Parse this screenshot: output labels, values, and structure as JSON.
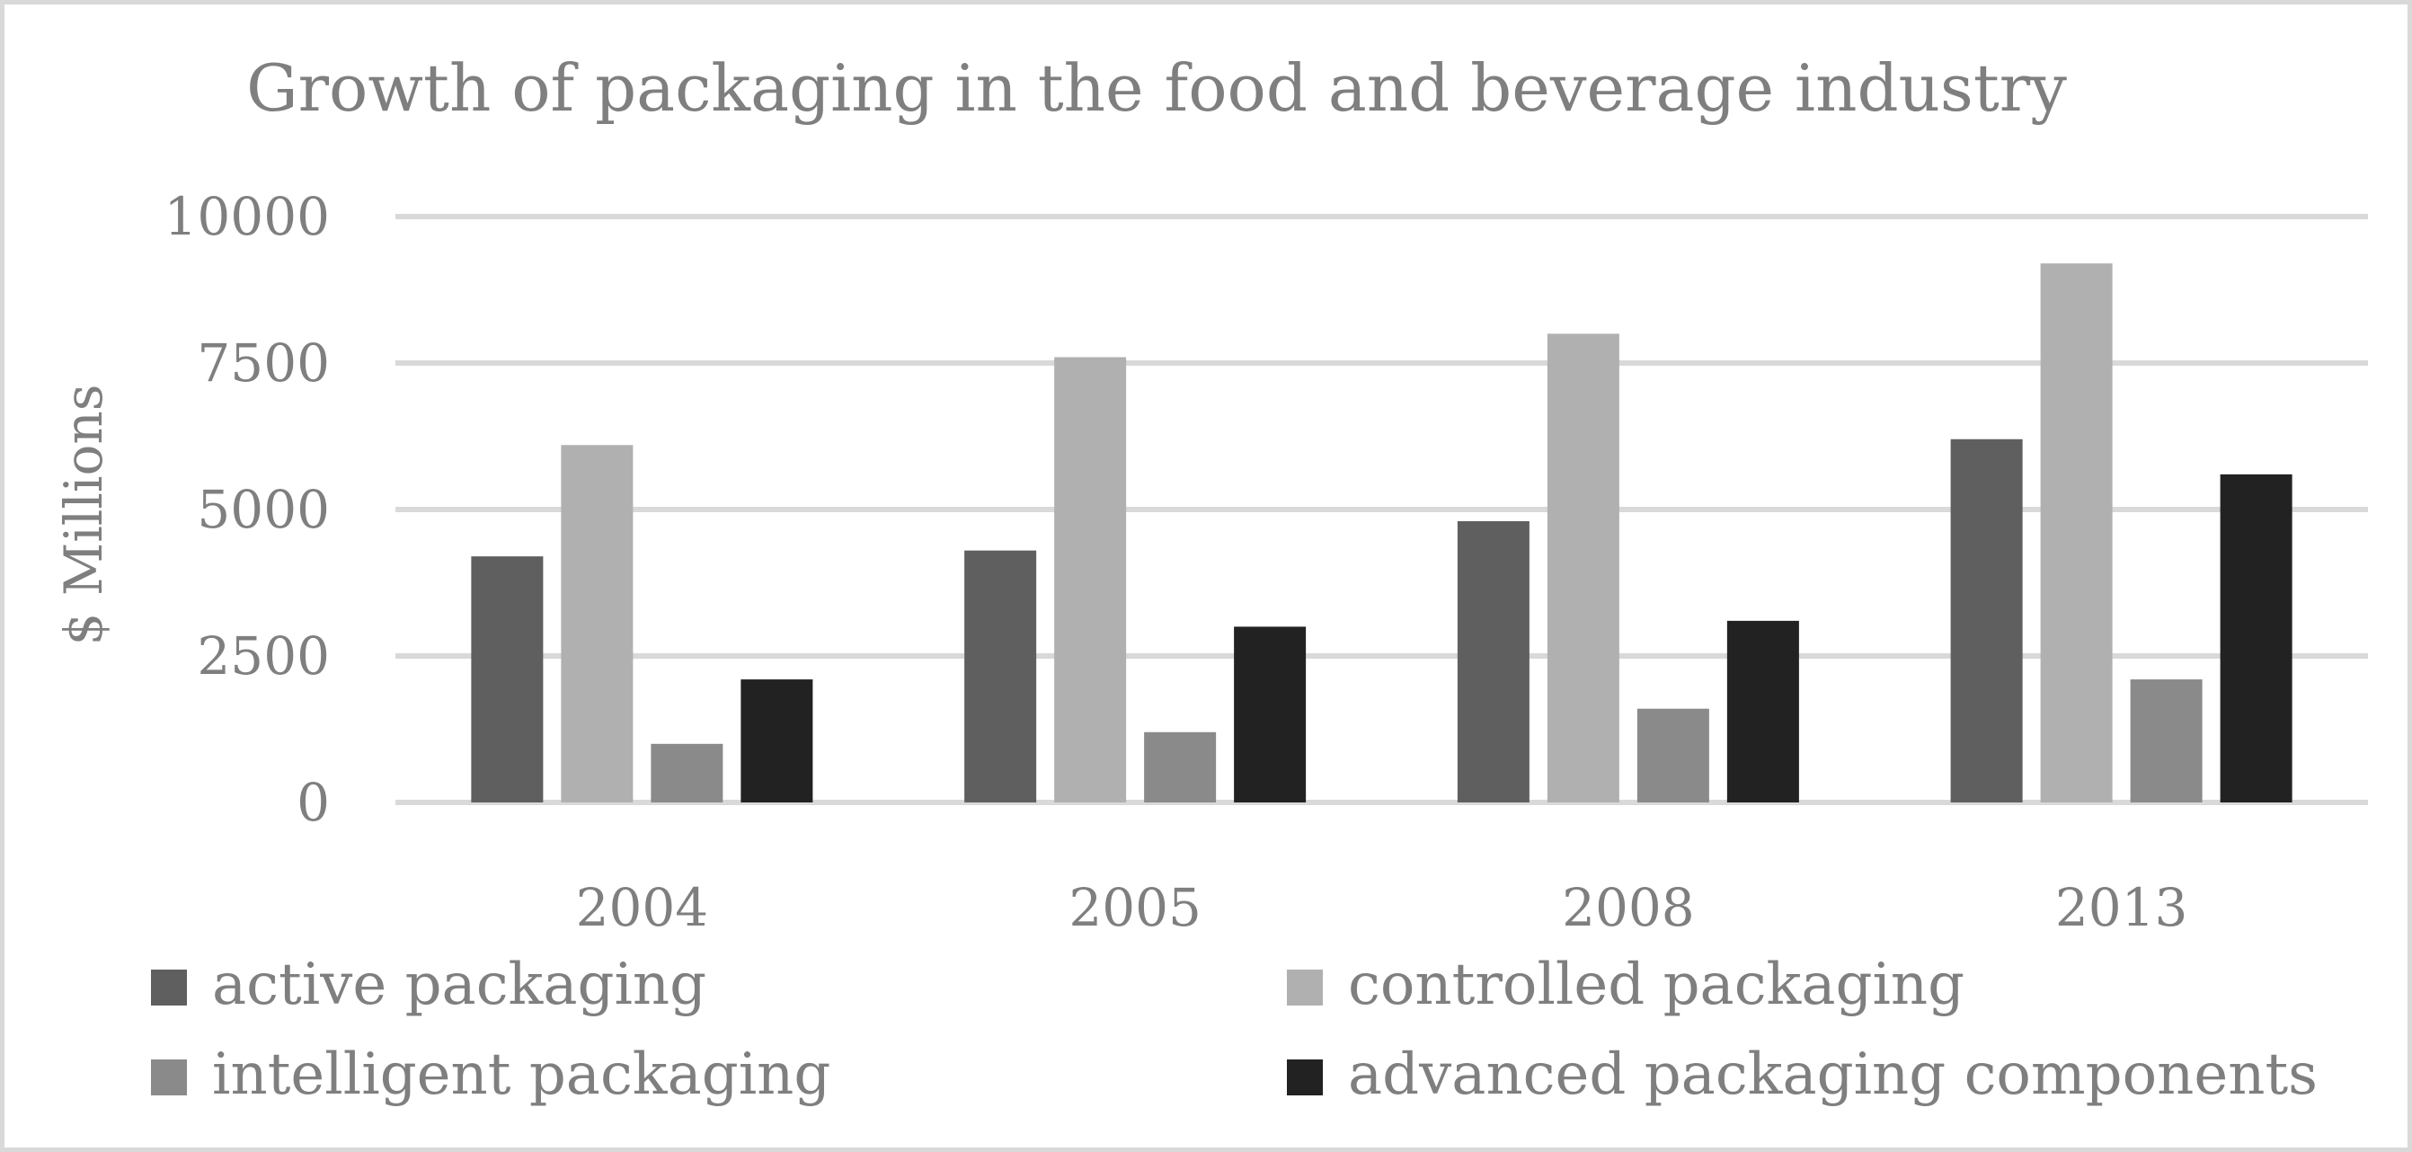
{
  "chart_data": {
    "type": "bar",
    "title": "Growth of packaging in the food and beverage industry",
    "xlabel": "",
    "ylabel": "$ Millions",
    "ylim": [
      0,
      10000
    ],
    "yticks": [
      "0",
      "2500",
      "5000",
      "7500",
      "10000"
    ],
    "grid": true,
    "legend_position": "bottom",
    "categories": [
      "2004",
      "2005",
      "2008",
      "2013"
    ],
    "series": [
      {
        "name": "active packaging",
        "color": "#5f5f5f",
        "values": [
          4200,
          4300,
          4800,
          6200
        ]
      },
      {
        "name": "controlled packaging",
        "color": "#b0b0b0",
        "values": [
          6100,
          7600,
          8000,
          9200
        ]
      },
      {
        "name": "intelligent packaging",
        "color": "#8a8a8a",
        "values": [
          1000,
          1200,
          1600,
          2100
        ]
      },
      {
        "name": "advanced packaging components",
        "color": "#222222",
        "values": [
          2100,
          3000,
          3100,
          5600
        ]
      }
    ]
  }
}
